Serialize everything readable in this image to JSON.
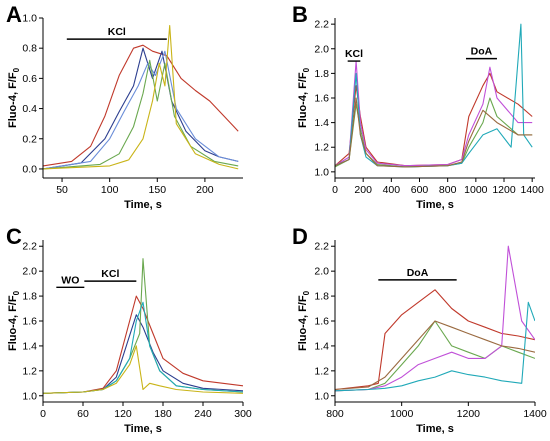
{
  "colors": [
    "#c0392b",
    "#2c3e8f",
    "#6a8dd8",
    "#6aa84f",
    "#c9b418",
    "#20a9b8",
    "#c050d8",
    "#9a6a40"
  ],
  "chart_data": [
    {
      "panel": "A",
      "type": "line",
      "xlabel": "Time, s",
      "ylabel": "Fluo-4, F/F",
      "xlim": [
        30,
        240
      ],
      "ylim": [
        -0.06,
        1.0
      ],
      "xticks": [
        50,
        100,
        150,
        200
      ],
      "yticks": [
        0.0,
        0.2,
        0.4,
        0.6,
        0.8,
        1.0
      ],
      "bars": [
        {
          "label": "KCl",
          "x0": 55,
          "x1": 160,
          "y": 0.86
        }
      ],
      "series": [
        {
          "color": "#c0392b",
          "x": [
            30,
            60,
            80,
            95,
            110,
            125,
            135,
            145,
            160,
            175,
            190,
            205,
            220,
            235
          ],
          "y": [
            0.02,
            0.05,
            0.15,
            0.35,
            0.62,
            0.8,
            0.82,
            0.78,
            0.75,
            0.6,
            0.52,
            0.45,
            0.35,
            0.25
          ]
        },
        {
          "color": "#2c3e8f",
          "x": [
            30,
            70,
            95,
            110,
            125,
            135,
            145,
            155,
            165,
            180,
            200,
            215,
            235
          ],
          "y": [
            0.0,
            0.04,
            0.2,
            0.38,
            0.55,
            0.8,
            0.6,
            0.78,
            0.45,
            0.25,
            0.12,
            0.08,
            0.05
          ]
        },
        {
          "color": "#6a8dd8",
          "x": [
            30,
            80,
            100,
            115,
            130,
            140,
            148,
            158,
            170,
            190,
            215,
            235
          ],
          "y": [
            0.0,
            0.05,
            0.2,
            0.38,
            0.55,
            0.7,
            0.62,
            0.78,
            0.4,
            0.2,
            0.08,
            0.05
          ]
        },
        {
          "color": "#6aa84f",
          "x": [
            30,
            90,
            110,
            125,
            135,
            142,
            150,
            158,
            168,
            185,
            210,
            235
          ],
          "y": [
            0.0,
            0.03,
            0.1,
            0.28,
            0.5,
            0.72,
            0.45,
            0.7,
            0.35,
            0.15,
            0.05,
            0.02
          ]
        },
        {
          "color": "#c9b418",
          "x": [
            30,
            100,
            120,
            135,
            145,
            152,
            158,
            163,
            170,
            190,
            215,
            235
          ],
          "y": [
            0.0,
            0.02,
            0.06,
            0.2,
            0.45,
            0.7,
            0.55,
            0.95,
            0.3,
            0.1,
            0.03,
            0.0
          ]
        }
      ]
    },
    {
      "panel": "B",
      "type": "line",
      "xlabel": "Time,  s",
      "ylabel": "Fluo-4, F/F",
      "xlim": [
        0,
        1420
      ],
      "ylim": [
        0.95,
        2.25
      ],
      "xticks": [
        0,
        200,
        400,
        600,
        800,
        1000,
        1200,
        1400
      ],
      "yticks": [
        1.0,
        1.2,
        1.4,
        1.6,
        1.8,
        2.0,
        2.2
      ],
      "bars": [
        {
          "label": "KCl",
          "x0": 90,
          "x1": 180,
          "y": 1.9
        },
        {
          "label": "DoA",
          "x0": 930,
          "x1": 1150,
          "y": 1.92
        }
      ],
      "series": [
        {
          "color": "#c0392b",
          "x": [
            0,
            100,
            150,
            180,
            220,
            300,
            500,
            800,
            900,
            950,
            1050,
            1100,
            1150,
            1300,
            1400
          ],
          "y": [
            1.05,
            1.15,
            1.7,
            1.45,
            1.2,
            1.08,
            1.05,
            1.06,
            1.1,
            1.45,
            1.7,
            1.8,
            1.65,
            1.55,
            1.45
          ]
        },
        {
          "color": "#6aa84f",
          "x": [
            0,
            100,
            150,
            180,
            220,
            300,
            500,
            800,
            900,
            950,
            1050,
            1100,
            1150,
            1300,
            1400
          ],
          "y": [
            1.04,
            1.1,
            1.55,
            1.35,
            1.15,
            1.06,
            1.04,
            1.05,
            1.07,
            1.2,
            1.4,
            1.6,
            1.45,
            1.3,
            1.3
          ]
        },
        {
          "color": "#c050d8",
          "x": [
            0,
            100,
            150,
            180,
            220,
            300,
            500,
            800,
            900,
            950,
            1050,
            1100,
            1150,
            1300,
            1400
          ],
          "y": [
            1.05,
            1.12,
            1.9,
            1.4,
            1.18,
            1.07,
            1.05,
            1.06,
            1.1,
            1.3,
            1.55,
            1.85,
            1.6,
            1.4,
            1.4
          ]
        },
        {
          "color": "#20a9b8",
          "x": [
            0,
            100,
            150,
            180,
            220,
            300,
            500,
            800,
            900,
            950,
            1050,
            1150,
            1250,
            1320,
            1340,
            1400
          ],
          "y": [
            1.05,
            1.1,
            1.8,
            1.3,
            1.12,
            1.05,
            1.04,
            1.05,
            1.07,
            1.15,
            1.3,
            1.35,
            1.2,
            2.2,
            1.3,
            1.2
          ]
        },
        {
          "color": "#9a6a40",
          "x": [
            0,
            100,
            150,
            180,
            220,
            300,
            500,
            800,
            900,
            950,
            1050,
            1150,
            1300,
            1400
          ],
          "y": [
            1.05,
            1.1,
            1.6,
            1.3,
            1.15,
            1.05,
            1.04,
            1.05,
            1.08,
            1.25,
            1.5,
            1.4,
            1.3,
            1.3
          ]
        }
      ]
    },
    {
      "panel": "C",
      "type": "line",
      "xlabel": "Time,  s",
      "ylabel": "Fluo-4, F/F",
      "xlim": [
        0,
        300
      ],
      "ylim": [
        0.95,
        2.25
      ],
      "xticks": [
        0,
        60,
        120,
        180,
        240,
        300
      ],
      "yticks": [
        1.0,
        1.2,
        1.4,
        1.6,
        1.8,
        2.0,
        2.2
      ],
      "bars": [
        {
          "label": "WO",
          "x0": 20,
          "x1": 62,
          "y": 1.87
        },
        {
          "label": "KCl",
          "x0": 62,
          "x1": 140,
          "y": 1.92
        }
      ],
      "series": [
        {
          "color": "#c0392b",
          "x": [
            0,
            60,
            90,
            110,
            125,
            140,
            150,
            165,
            180,
            210,
            240,
            270,
            300
          ],
          "y": [
            1.02,
            1.03,
            1.06,
            1.2,
            1.5,
            1.8,
            1.7,
            1.5,
            1.3,
            1.18,
            1.12,
            1.1,
            1.08
          ]
        },
        {
          "color": "#2c3e8f",
          "x": [
            0,
            60,
            90,
            110,
            125,
            140,
            150,
            165,
            180,
            210,
            240,
            270,
            300
          ],
          "y": [
            1.02,
            1.03,
            1.05,
            1.15,
            1.4,
            1.65,
            1.55,
            1.35,
            1.2,
            1.1,
            1.06,
            1.05,
            1.04
          ]
        },
        {
          "color": "#6aa84f",
          "x": [
            0,
            60,
            90,
            110,
            130,
            145,
            150,
            160,
            175,
            200,
            240,
            300
          ],
          "y": [
            1.02,
            1.03,
            1.05,
            1.12,
            1.3,
            1.5,
            2.1,
            1.4,
            1.2,
            1.08,
            1.05,
            1.03
          ]
        },
        {
          "color": "#20a9b8",
          "x": [
            0,
            60,
            90,
            110,
            130,
            140,
            150,
            160,
            175,
            200,
            240,
            300
          ],
          "y": [
            1.02,
            1.03,
            1.05,
            1.12,
            1.3,
            1.6,
            1.75,
            1.4,
            1.2,
            1.08,
            1.05,
            1.03
          ]
        },
        {
          "color": "#c9b418",
          "x": [
            0,
            60,
            90,
            110,
            130,
            140,
            150,
            160,
            175,
            200,
            240,
            300
          ],
          "y": [
            1.02,
            1.03,
            1.05,
            1.1,
            1.25,
            1.4,
            1.05,
            1.1,
            1.08,
            1.05,
            1.03,
            1.02
          ]
        }
      ]
    },
    {
      "panel": "D",
      "type": "line",
      "xlabel": "Time,  s",
      "ylabel": "Fluo-4, F/F",
      "xlim": [
        800,
        1400
      ],
      "ylim": [
        0.95,
        2.25
      ],
      "xticks": [
        800,
        1000,
        1200,
        1400
      ],
      "yticks": [
        1.0,
        1.2,
        1.4,
        1.6,
        1.8,
        2.0,
        2.2
      ],
      "bars": [
        {
          "label": "DoA",
          "x0": 930,
          "x1": 1165,
          "y": 1.93
        }
      ],
      "series": [
        {
          "color": "#c0392b",
          "x": [
            800,
            900,
            930,
            950,
            1000,
            1050,
            1100,
            1150,
            1200,
            1250,
            1300,
            1350,
            1400
          ],
          "y": [
            1.05,
            1.08,
            1.1,
            1.5,
            1.65,
            1.75,
            1.85,
            1.7,
            1.6,
            1.55,
            1.5,
            1.48,
            1.45
          ]
        },
        {
          "color": "#6aa84f",
          "x": [
            800,
            900,
            950,
            1000,
            1050,
            1100,
            1150,
            1200,
            1250,
            1300,
            1350,
            1400
          ],
          "y": [
            1.04,
            1.05,
            1.1,
            1.25,
            1.4,
            1.6,
            1.4,
            1.35,
            1.3,
            1.4,
            1.35,
            1.3
          ]
        },
        {
          "color": "#c050d8",
          "x": [
            800,
            900,
            950,
            1000,
            1050,
            1100,
            1150,
            1200,
            1250,
            1300,
            1320,
            1360,
            1400
          ],
          "y": [
            1.04,
            1.05,
            1.08,
            1.15,
            1.25,
            1.3,
            1.35,
            1.3,
            1.3,
            1.4,
            2.2,
            1.6,
            1.45
          ]
        },
        {
          "color": "#20a9b8",
          "x": [
            800,
            900,
            950,
            1000,
            1050,
            1100,
            1150,
            1200,
            1250,
            1300,
            1360,
            1380,
            1400
          ],
          "y": [
            1.04,
            1.05,
            1.06,
            1.08,
            1.12,
            1.15,
            1.2,
            1.17,
            1.15,
            1.12,
            1.1,
            1.75,
            1.6
          ]
        },
        {
          "color": "#9a6a40",
          "x": [
            800,
            900,
            950,
            1000,
            1050,
            1100,
            1150,
            1200,
            1250,
            1300,
            1350,
            1400
          ],
          "y": [
            1.05,
            1.07,
            1.15,
            1.3,
            1.45,
            1.6,
            1.55,
            1.5,
            1.45,
            1.4,
            1.38,
            1.35
          ]
        }
      ]
    }
  ]
}
